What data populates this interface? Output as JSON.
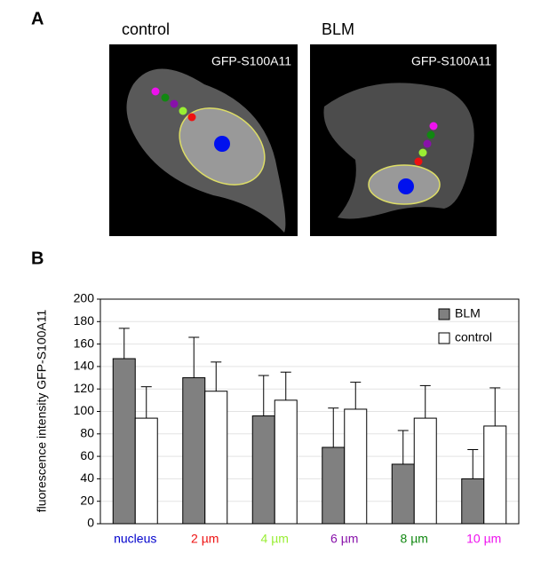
{
  "panels": {
    "a_label": "A",
    "b_label": "B",
    "control_title": "control",
    "blm_title": "BLM",
    "control_image_label": "GFP-S100A11",
    "blm_image_label": "GFP-S100A11"
  },
  "chart_data": {
    "type": "bar",
    "y_label": "fluorescence intensity GFP-S100A11",
    "categories": [
      "nucleus",
      "2 µm",
      "4 µm",
      "6 µm",
      "8 µm",
      "10 µm"
    ],
    "category_colors": [
      "#0000cc",
      "#ee1111",
      "#99ee33",
      "#8811aa",
      "#118811",
      "#ee11ee"
    ],
    "series": [
      {
        "name": "BLM",
        "color": "#808080",
        "values": [
          147,
          130,
          96,
          68,
          53,
          40
        ],
        "errors": [
          27,
          36,
          36,
          35,
          30,
          26
        ]
      },
      {
        "name": "control",
        "color": "#ffffff",
        "values": [
          94,
          118,
          110,
          102,
          94,
          87
        ],
        "errors": [
          28,
          26,
          25,
          24,
          29,
          34
        ]
      }
    ],
    "ylim": [
      0,
      200
    ],
    "yticks": [
      0,
      20,
      40,
      60,
      80,
      100,
      120,
      140,
      160,
      180,
      200
    ],
    "grid": true,
    "legend": "upper right"
  }
}
